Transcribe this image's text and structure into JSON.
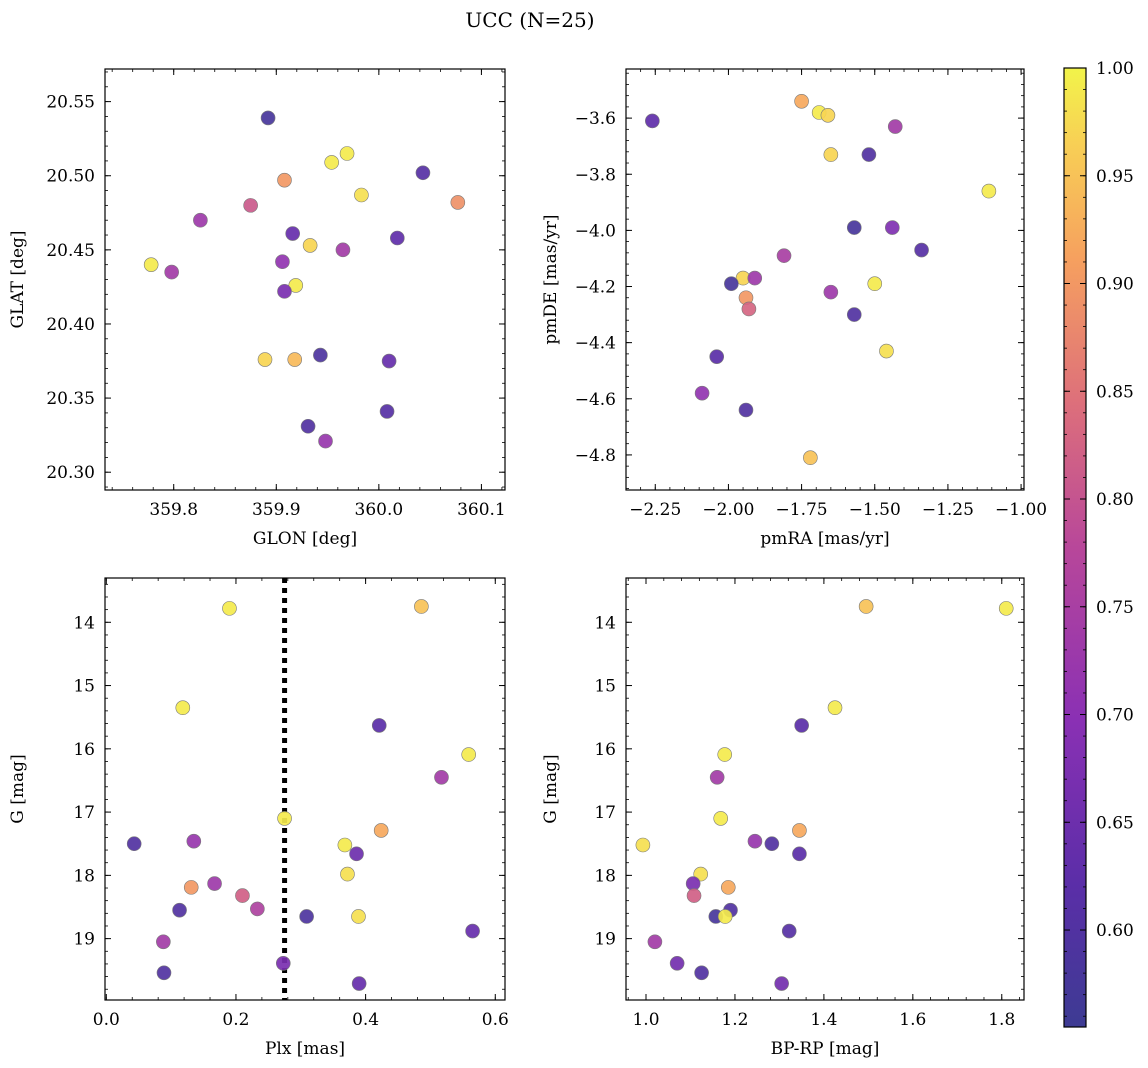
{
  "figure": {
    "title": "UCC (N=25)"
  },
  "colorbar": {
    "ticks": [
      0.6,
      0.65,
      0.7,
      0.75,
      0.8,
      0.85,
      0.9,
      0.95,
      1.0
    ],
    "tick_labels": [
      "0.60",
      "0.65",
      "0.70",
      "0.75",
      "0.80",
      "0.85",
      "0.90",
      "0.95",
      "1.00"
    ],
    "range": [
      0.555,
      1.0
    ],
    "colormap": "plasma"
  },
  "chart_data": [
    {
      "type": "scatter",
      "xlabel": "GLON [deg]",
      "ylabel": "GLAT [deg]",
      "xlim": [
        359.733,
        360.123
      ],
      "ylim": [
        20.288,
        20.572
      ],
      "xticks": [
        359.8,
        359.9,
        360.0,
        360.1
      ],
      "xtick_labels": [
        "359.8",
        "359.9",
        "360.0",
        "360.1"
      ],
      "yticks": [
        20.3,
        20.35,
        20.4,
        20.45,
        20.5,
        20.55
      ],
      "ytick_labels": [
        "20.30",
        "20.35",
        "20.40",
        "20.45",
        "20.50",
        "20.55"
      ],
      "y_inverted": false,
      "points": [
        {
          "x": 359.892,
          "y": 20.539,
          "c": 0.58
        },
        {
          "x": 359.969,
          "y": 20.515,
          "c": 0.99
        },
        {
          "x": 359.954,
          "y": 20.509,
          "c": 0.99
        },
        {
          "x": 360.043,
          "y": 20.502,
          "c": 0.61
        },
        {
          "x": 359.908,
          "y": 20.497,
          "c": 0.9
        },
        {
          "x": 359.983,
          "y": 20.487,
          "c": 0.98
        },
        {
          "x": 360.077,
          "y": 20.482,
          "c": 0.89
        },
        {
          "x": 359.875,
          "y": 20.48,
          "c": 0.81
        },
        {
          "x": 359.826,
          "y": 20.47,
          "c": 0.73
        },
        {
          "x": 359.916,
          "y": 20.461,
          "c": 0.64
        },
        {
          "x": 360.018,
          "y": 20.458,
          "c": 0.63
        },
        {
          "x": 359.933,
          "y": 20.453,
          "c": 0.97
        },
        {
          "x": 359.965,
          "y": 20.45,
          "c": 0.74
        },
        {
          "x": 359.906,
          "y": 20.442,
          "c": 0.71
        },
        {
          "x": 359.778,
          "y": 20.44,
          "c": 0.99
        },
        {
          "x": 359.798,
          "y": 20.435,
          "c": 0.74
        },
        {
          "x": 359.919,
          "y": 20.426,
          "c": 0.99
        },
        {
          "x": 359.908,
          "y": 20.422,
          "c": 0.67
        },
        {
          "x": 359.889,
          "y": 20.376,
          "c": 0.97
        },
        {
          "x": 359.918,
          "y": 20.376,
          "c": 0.94
        },
        {
          "x": 359.943,
          "y": 20.379,
          "c": 0.59
        },
        {
          "x": 360.01,
          "y": 20.375,
          "c": 0.64
        },
        {
          "x": 360.008,
          "y": 20.341,
          "c": 0.61
        },
        {
          "x": 359.931,
          "y": 20.331,
          "c": 0.6
        },
        {
          "x": 359.948,
          "y": 20.321,
          "c": 0.72
        }
      ]
    },
    {
      "type": "scatter",
      "xlabel": "pmRA [mas/yr]",
      "ylabel": "pmDE [mas/yr]",
      "xlim": [
        -2.35,
        -0.99
      ],
      "ylim": [
        -4.925,
        -3.425
      ],
      "xticks": [
        -2.25,
        -2.0,
        -1.75,
        -1.5,
        -1.25,
        -1.0
      ],
      "xtick_labels": [
        "−2.25",
        "−2.00",
        "−1.75",
        "−1.50",
        "−1.25",
        "−1.00"
      ],
      "yticks": [
        -4.8,
        -4.6,
        -4.4,
        -4.2,
        -4.0,
        -3.8,
        -3.6
      ],
      "ytick_labels": [
        "−4.8",
        "−4.6",
        "−4.4",
        "−4.2",
        "−4.0",
        "−3.8",
        "−3.6"
      ],
      "y_inverted": false,
      "points": [
        {
          "x": -2.26,
          "y": -3.61,
          "c": 0.63
        },
        {
          "x": -1.75,
          "y": -3.54,
          "c": 0.92
        },
        {
          "x": -1.69,
          "y": -3.58,
          "c": 0.99
        },
        {
          "x": -1.66,
          "y": -3.59,
          "c": 0.97
        },
        {
          "x": -1.43,
          "y": -3.63,
          "c": 0.74
        },
        {
          "x": -1.65,
          "y": -3.73,
          "c": 0.97
        },
        {
          "x": -1.52,
          "y": -3.73,
          "c": 0.6
        },
        {
          "x": -1.11,
          "y": -3.86,
          "c": 0.99
        },
        {
          "x": -1.57,
          "y": -3.99,
          "c": 0.58
        },
        {
          "x": -1.44,
          "y": -3.99,
          "c": 0.68
        },
        {
          "x": -1.34,
          "y": -4.07,
          "c": 0.61
        },
        {
          "x": -1.81,
          "y": -4.09,
          "c": 0.75
        },
        {
          "x": -1.95,
          "y": -4.17,
          "c": 0.97
        },
        {
          "x": -1.91,
          "y": -4.17,
          "c": 0.73
        },
        {
          "x": -1.99,
          "y": -4.19,
          "c": 0.58
        },
        {
          "x": -1.5,
          "y": -4.19,
          "c": 0.99
        },
        {
          "x": -1.65,
          "y": -4.22,
          "c": 0.73
        },
        {
          "x": -1.94,
          "y": -4.24,
          "c": 0.9
        },
        {
          "x": -1.93,
          "y": -4.28,
          "c": 0.83
        },
        {
          "x": -1.57,
          "y": -4.3,
          "c": 0.6
        },
        {
          "x": -1.46,
          "y": -4.43,
          "c": 0.98
        },
        {
          "x": -2.04,
          "y": -4.45,
          "c": 0.62
        },
        {
          "x": -2.09,
          "y": -4.58,
          "c": 0.71
        },
        {
          "x": -1.94,
          "y": -4.64,
          "c": 0.6
        },
        {
          "x": -1.72,
          "y": -4.81,
          "c": 0.95
        }
      ]
    },
    {
      "type": "scatter",
      "xlabel": "Plx [mas]",
      "ylabel": "G [mag]",
      "xlim": [
        -0.002,
        0.615
      ],
      "ylim": [
        19.97,
        13.3
      ],
      "xticks": [
        0.0,
        0.2,
        0.4,
        0.6
      ],
      "xtick_labels": [
        "0.0",
        "0.2",
        "0.4",
        "0.6"
      ],
      "yticks": [
        14,
        15,
        16,
        17,
        18,
        19
      ],
      "ytick_labels": [
        "14",
        "15",
        "16",
        "17",
        "18",
        "19"
      ],
      "y_inverted": true,
      "vline": {
        "x": 0.275,
        "style": "dotted",
        "color": "#000000"
      },
      "points": [
        {
          "x": 0.19,
          "y": 13.78,
          "c": 0.99
        },
        {
          "x": 0.486,
          "y": 13.75,
          "c": 0.95
        },
        {
          "x": 0.118,
          "y": 15.35,
          "c": 0.99
        },
        {
          "x": 0.421,
          "y": 15.63,
          "c": 0.62
        },
        {
          "x": 0.559,
          "y": 16.09,
          "c": 0.99
        },
        {
          "x": 0.517,
          "y": 16.45,
          "c": 0.74
        },
        {
          "x": 0.275,
          "y": 17.1,
          "c": 0.99
        },
        {
          "x": 0.424,
          "y": 17.29,
          "c": 0.92
        },
        {
          "x": 0.135,
          "y": 17.46,
          "c": 0.72
        },
        {
          "x": 0.043,
          "y": 17.5,
          "c": 0.6
        },
        {
          "x": 0.368,
          "y": 17.52,
          "c": 0.99
        },
        {
          "x": 0.386,
          "y": 17.66,
          "c": 0.65
        },
        {
          "x": 0.372,
          "y": 17.98,
          "c": 0.98
        },
        {
          "x": 0.167,
          "y": 18.13,
          "c": 0.73
        },
        {
          "x": 0.131,
          "y": 18.19,
          "c": 0.9
        },
        {
          "x": 0.21,
          "y": 18.32,
          "c": 0.82
        },
        {
          "x": 0.233,
          "y": 18.53,
          "c": 0.76
        },
        {
          "x": 0.113,
          "y": 18.55,
          "c": 0.6
        },
        {
          "x": 0.309,
          "y": 18.65,
          "c": 0.59
        },
        {
          "x": 0.389,
          "y": 18.65,
          "c": 0.98
        },
        {
          "x": 0.565,
          "y": 18.88,
          "c": 0.64
        },
        {
          "x": 0.088,
          "y": 19.05,
          "c": 0.74
        },
        {
          "x": 0.273,
          "y": 19.39,
          "c": 0.67
        },
        {
          "x": 0.089,
          "y": 19.54,
          "c": 0.6
        },
        {
          "x": 0.39,
          "y": 19.71,
          "c": 0.64
        }
      ]
    },
    {
      "type": "scatter",
      "xlabel": "BP-RP [mag]",
      "ylabel": "G [mag]",
      "xlim": [
        0.955,
        1.85
      ],
      "ylim": [
        19.97,
        13.3
      ],
      "xticks": [
        1.0,
        1.2,
        1.4,
        1.6,
        1.8
      ],
      "xtick_labels": [
        "1.0",
        "1.2",
        "1.4",
        "1.6",
        "1.8"
      ],
      "yticks": [
        14,
        15,
        16,
        17,
        18,
        19
      ],
      "ytick_labels": [
        "14",
        "15",
        "16",
        "17",
        "18",
        "19"
      ],
      "y_inverted": true,
      "points": [
        {
          "x": 1.495,
          "y": 13.75,
          "c": 0.95
        },
        {
          "x": 1.81,
          "y": 13.78,
          "c": 0.99
        },
        {
          "x": 1.425,
          "y": 15.35,
          "c": 0.99
        },
        {
          "x": 1.35,
          "y": 15.63,
          "c": 0.62
        },
        {
          "x": 1.177,
          "y": 16.09,
          "c": 0.99
        },
        {
          "x": 1.16,
          "y": 16.45,
          "c": 0.74
        },
        {
          "x": 1.168,
          "y": 17.1,
          "c": 0.99
        },
        {
          "x": 1.345,
          "y": 17.29,
          "c": 0.92
        },
        {
          "x": 1.245,
          "y": 17.46,
          "c": 0.72
        },
        {
          "x": 0.993,
          "y": 17.52,
          "c": 0.98
        },
        {
          "x": 1.283,
          "y": 17.5,
          "c": 0.6
        },
        {
          "x": 1.345,
          "y": 17.66,
          "c": 0.62
        },
        {
          "x": 1.123,
          "y": 17.98,
          "c": 0.98
        },
        {
          "x": 1.106,
          "y": 18.13,
          "c": 0.67
        },
        {
          "x": 1.185,
          "y": 18.19,
          "c": 0.92
        },
        {
          "x": 1.108,
          "y": 18.32,
          "c": 0.82
        },
        {
          "x": 1.19,
          "y": 18.55,
          "c": 0.6
        },
        {
          "x": 1.157,
          "y": 18.65,
          "c": 0.58
        },
        {
          "x": 1.178,
          "y": 18.65,
          "c": 0.99
        },
        {
          "x": 1.322,
          "y": 18.88,
          "c": 0.61
        },
        {
          "x": 1.02,
          "y": 19.05,
          "c": 0.74
        },
        {
          "x": 1.07,
          "y": 19.39,
          "c": 0.66
        },
        {
          "x": 1.125,
          "y": 19.54,
          "c": 0.6
        },
        {
          "x": 1.305,
          "y": 19.71,
          "c": 0.66
        }
      ]
    }
  ]
}
